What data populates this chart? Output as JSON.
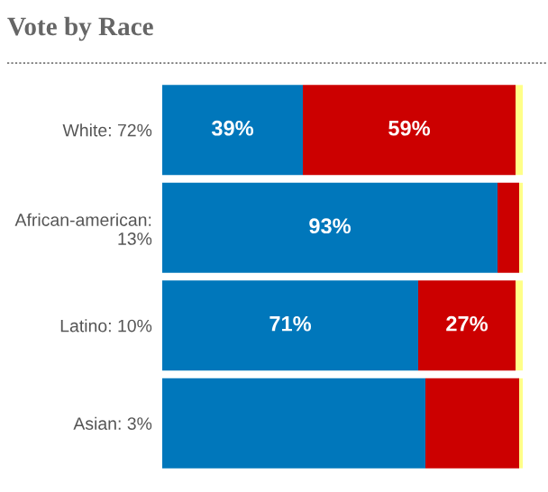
{
  "chart_data": {
    "type": "bar",
    "title": "Vote by Race",
    "orientation": "horizontal",
    "stacked": true,
    "categories": [
      "White: 72%",
      "African-american: 13%",
      "Latino: 10%",
      "Asian: 3%"
    ],
    "xlim": [
      0,
      100
    ],
    "series": [
      {
        "color": "#0077bb",
        "values": [
          39,
          93,
          71,
          73
        ],
        "value_labels": [
          "39%",
          "93%",
          "71%",
          null
        ]
      },
      {
        "color": "#cc0000",
        "values": [
          59,
          6,
          27,
          26
        ],
        "value_labels": [
          "59%",
          null,
          "27%",
          null
        ]
      },
      {
        "color": "#ffff88",
        "values": [
          2,
          1,
          2,
          1
        ]
      }
    ]
  }
}
